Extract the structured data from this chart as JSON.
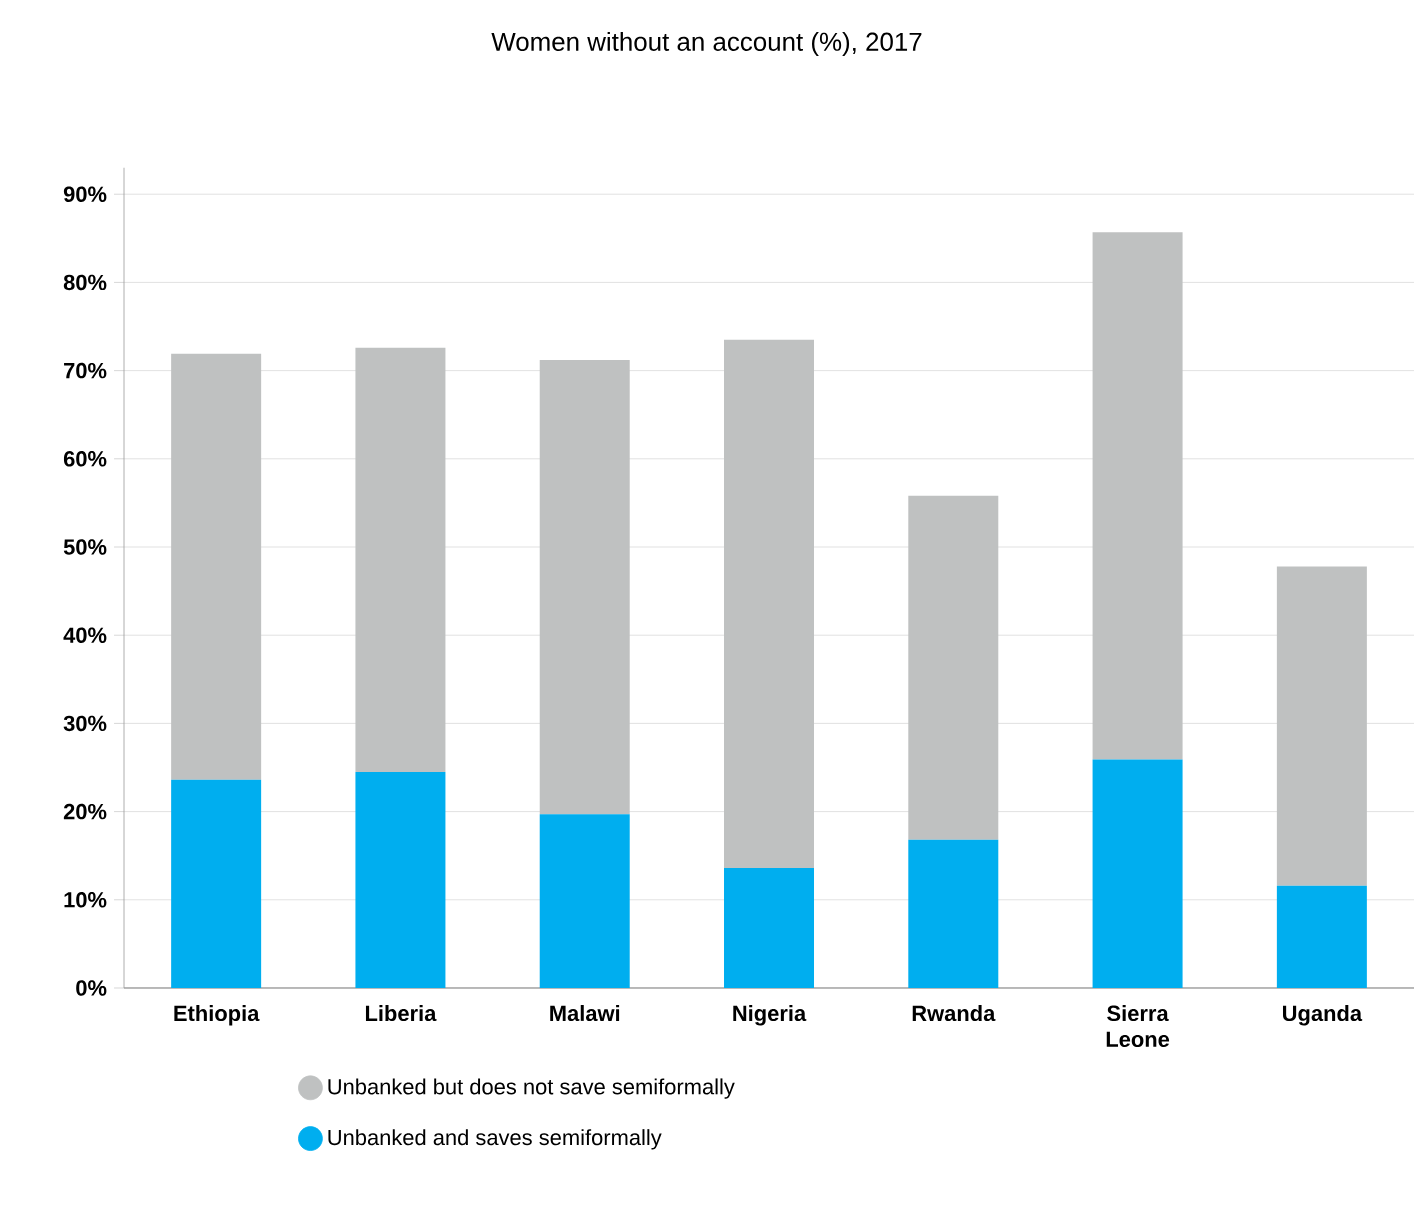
{
  "chart_data": {
    "type": "bar",
    "title": "Women without an account (%), 2017",
    "categories": [
      "Ethiopia",
      "Liberia",
      "Malawi",
      "Nigeria",
      "Rwanda",
      "Sierra Leone",
      "Uganda"
    ],
    "stacked": true,
    "series": [
      {
        "name": "Unbanked and saves semiformally",
        "color": "#00aeef",
        "values": [
          23.6,
          24.5,
          19.7,
          13.6,
          16.8,
          25.9,
          11.6
        ]
      },
      {
        "name": "Unbanked but does not save semiformally",
        "color": "#bfc1c1",
        "values": [
          48.3,
          48.1,
          51.5,
          59.9,
          39.0,
          59.8,
          36.2
        ]
      }
    ],
    "ylim": [
      0,
      93
    ],
    "yticks": [
      {
        "value": 0,
        "label": "0%"
      },
      {
        "value": 10,
        "label": "10%"
      },
      {
        "value": 20,
        "label": "20%"
      },
      {
        "value": 30,
        "label": "30%"
      },
      {
        "value": 40,
        "label": "40%"
      },
      {
        "value": 50,
        "label": "50%"
      },
      {
        "value": 60,
        "label": "60%"
      },
      {
        "value": 70,
        "label": "70%"
      },
      {
        "value": 80,
        "label": "80%"
      },
      {
        "value": 90,
        "label": "90%"
      }
    ],
    "grid": "y",
    "legend": "bottom",
    "marker": "circle"
  }
}
